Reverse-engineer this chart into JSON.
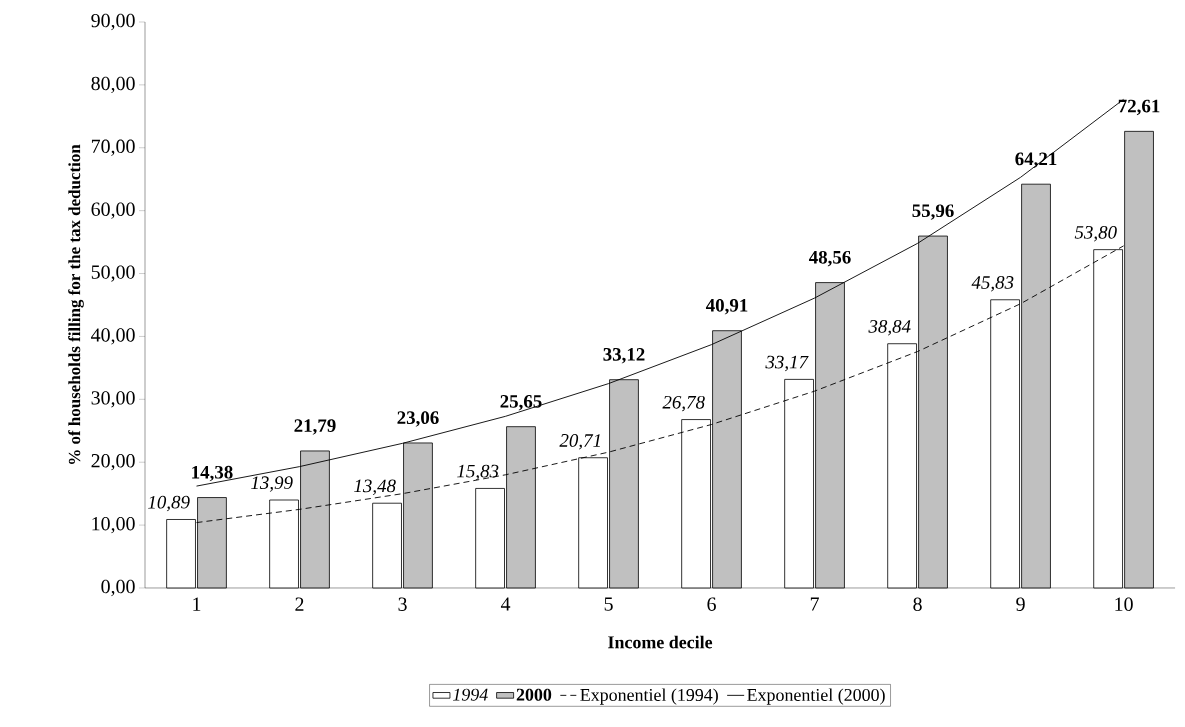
{
  "chart_data": {
    "type": "bar",
    "xlabel": "Income decile",
    "ylabel": "% of households filling for the tax deduction",
    "categories": [
      "1",
      "2",
      "3",
      "4",
      "5",
      "6",
      "7",
      "8",
      "9",
      "10"
    ],
    "series": [
      {
        "name": "1994",
        "color": "#ffffff",
        "values": [
          10.89,
          13.99,
          13.48,
          15.83,
          20.71,
          26.78,
          33.17,
          38.84,
          45.83,
          53.8
        ],
        "value_labels": [
          "10,89",
          "13,99",
          "13,48",
          "15,83",
          "20,71",
          "26,78",
          "33,17",
          "38,84",
          "45,83",
          "53,80"
        ]
      },
      {
        "name": "2000",
        "color": "#c0c0c0",
        "values": [
          14.38,
          21.79,
          23.06,
          25.65,
          33.12,
          40.91,
          48.56,
          55.96,
          64.21,
          72.61
        ],
        "value_labels": [
          "14,38",
          "21,79",
          "23,06",
          "25,65",
          "33,12",
          "40,91",
          "48,56",
          "55,96",
          "64,21",
          "72,61"
        ]
      },
      {
        "name": "Exponentiel (1994)",
        "type": "line",
        "color": "#000000",
        "line_style": "dashed",
        "values": [
          10.4,
          12.5,
          15.0,
          18.0,
          21.6,
          26.0,
          31.3,
          37.6,
          45.2,
          54.4
        ]
      },
      {
        "name": "Exponentiel (2000)",
        "type": "line",
        "color": "#000000",
        "line_style": "solid",
        "values": [
          16.2,
          19.3,
          23.0,
          27.3,
          32.5,
          38.7,
          46.1,
          54.8,
          65.3,
          77.7
        ]
      }
    ],
    "ylim": [
      0,
      90
    ],
    "yticks": [
      {
        "value": 0,
        "label": "0,00"
      },
      {
        "value": 10,
        "label": "10,00"
      },
      {
        "value": 20,
        "label": "20,00"
      },
      {
        "value": 30,
        "label": "30,00"
      },
      {
        "value": 40,
        "label": "40,00"
      },
      {
        "value": 50,
        "label": "50,00"
      },
      {
        "value": 60,
        "label": "60,00"
      },
      {
        "value": 70,
        "label": "70,00"
      },
      {
        "value": 80,
        "label": "80,00"
      },
      {
        "value": 90,
        "label": "90,00"
      }
    ],
    "grid": false,
    "legend": "bottom"
  }
}
